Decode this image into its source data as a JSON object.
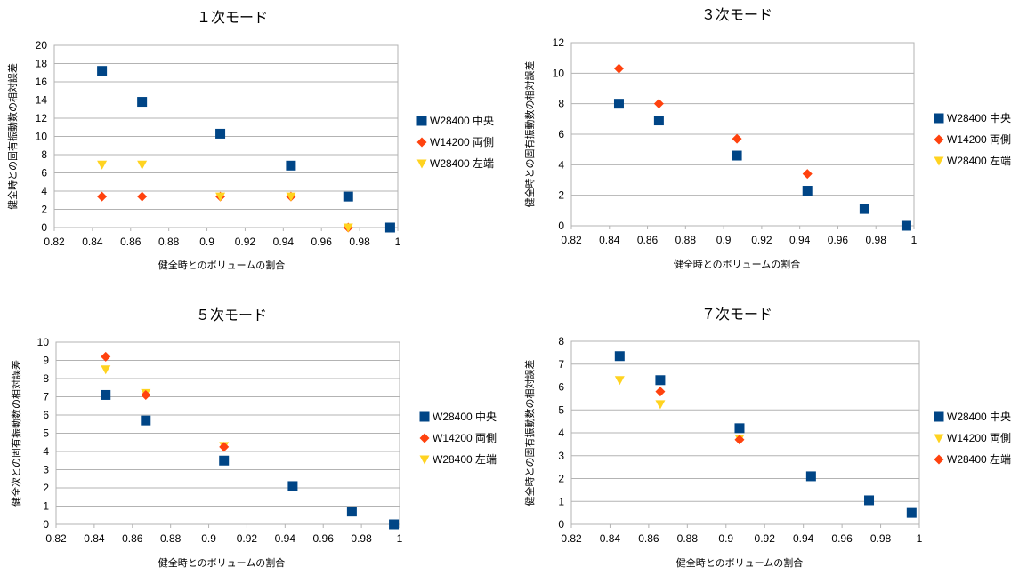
{
  "chart_data": [
    {
      "type": "scatter",
      "title": "１次モード",
      "xlabel": "健全時とのボリュームの割合",
      "ylabel": "健全時との固有振動数の相対誤差",
      "xlim": [
        0.82,
        1
      ],
      "ylim": [
        0,
        20
      ],
      "xticks": [
        0.82,
        0.84,
        0.86,
        0.88,
        0.9,
        0.92,
        0.94,
        0.96,
        0.98,
        1
      ],
      "yticks": [
        0,
        2,
        4,
        6,
        8,
        10,
        12,
        14,
        16,
        18,
        20
      ],
      "xtick_labels": [
        "0.82",
        "0.84",
        "0.86",
        "0.88",
        "0.9",
        "0.92",
        "0.94",
        "0.96",
        "0.98",
        "1"
      ],
      "ytick_labels": [
        "0",
        "2",
        "4",
        "6",
        "8",
        "10",
        "12",
        "14",
        "16",
        "18",
        "20"
      ],
      "grid": true,
      "legend_position": "right",
      "series": [
        {
          "name": "W28400  中央",
          "marker": "square",
          "color": "#004586",
          "points": [
            [
              0.845,
              17.2
            ],
            [
              0.866,
              13.8
            ],
            [
              0.907,
              10.3
            ],
            [
              0.944,
              6.8
            ],
            [
              0.974,
              3.4
            ],
            [
              0.996,
              0
            ]
          ]
        },
        {
          "name": "W14200  両側",
          "marker": "diamond",
          "color": "#ff420e",
          "points": [
            [
              0.845,
              3.4
            ],
            [
              0.866,
              3.4
            ],
            [
              0.907,
              3.4
            ],
            [
              0.944,
              3.4
            ],
            [
              0.974,
              0
            ],
            [
              0.996,
              0
            ]
          ]
        },
        {
          "name": "W28400  左端",
          "marker": "triangle-down",
          "color": "#ffd320",
          "points": [
            [
              0.845,
              6.9
            ],
            [
              0.866,
              6.9
            ],
            [
              0.907,
              3.4
            ],
            [
              0.944,
              3.4
            ],
            [
              0.974,
              0
            ],
            [
              0.996,
              0
            ]
          ]
        }
      ],
      "draw_order": [
        1,
        2,
        0
      ]
    },
    {
      "type": "scatter",
      "title": "３次モード",
      "xlabel": "健全時とのボリュームの割合",
      "ylabel": "健全時との固有振動数の相対誤差",
      "xlim": [
        0.82,
        1
      ],
      "ylim": [
        0,
        12
      ],
      "xticks": [
        0.82,
        0.84,
        0.86,
        0.88,
        0.9,
        0.92,
        0.94,
        0.96,
        0.98,
        1
      ],
      "yticks": [
        0,
        2,
        4,
        6,
        8,
        10,
        12
      ],
      "xtick_labels": [
        "0.82",
        "0.84",
        "0.86",
        "0.88",
        "0.9",
        "0.92",
        "0.94",
        "0.96",
        "0.98",
        "1"
      ],
      "ytick_labels": [
        "0",
        "2",
        "4",
        "6",
        "8",
        "10",
        "12"
      ],
      "grid": true,
      "legend_position": "right",
      "series": [
        {
          "name": "W28400  中央",
          "marker": "square",
          "color": "#004586",
          "points": [
            [
              0.845,
              8.0
            ],
            [
              0.866,
              6.9
            ],
            [
              0.907,
              4.6
            ],
            [
              0.944,
              2.3
            ],
            [
              0.974,
              1.1
            ],
            [
              0.996,
              0
            ]
          ]
        },
        {
          "name": "W14200  両側",
          "marker": "diamond",
          "color": "#ff420e",
          "points": [
            [
              0.845,
              10.3
            ],
            [
              0.866,
              8.0
            ],
            [
              0.907,
              5.7
            ],
            [
              0.944,
              3.4
            ]
          ]
        },
        {
          "name": "W28400  左端",
          "marker": "triangle-down",
          "color": "#ffd320",
          "points": []
        }
      ],
      "draw_order": [
        2,
        1,
        0
      ]
    },
    {
      "type": "scatter",
      "title": "５次モード",
      "xlabel": "健全時とのボリュームの割合",
      "ylabel": "健全次との固有振動数の相対誤差",
      "xlim": [
        0.82,
        1
      ],
      "ylim": [
        0,
        10
      ],
      "xticks": [
        0.82,
        0.84,
        0.86,
        0.88,
        0.9,
        0.92,
        0.94,
        0.96,
        0.98,
        1
      ],
      "yticks": [
        0,
        1,
        2,
        3,
        4,
        5,
        6,
        7,
        8,
        9,
        10
      ],
      "xtick_labels": [
        "0.82",
        "0.84",
        "0.86",
        "0.88",
        "0.9",
        "0.92",
        "0.94",
        "0.96",
        "0.98",
        "1"
      ],
      "ytick_labels": [
        "0",
        "1",
        "2",
        "3",
        "4",
        "5",
        "6",
        "7",
        "8",
        "9",
        "10"
      ],
      "grid": true,
      "legend_position": "right",
      "series": [
        {
          "name": "W28400  中央",
          "marker": "square",
          "color": "#004586",
          "points": [
            [
              0.846,
              7.1
            ],
            [
              0.867,
              5.7
            ],
            [
              0.908,
              3.5
            ],
            [
              0.944,
              2.1
            ],
            [
              0.975,
              0.7
            ],
            [
              0.997,
              0
            ]
          ]
        },
        {
          "name": "W14200  両側",
          "marker": "diamond",
          "color": "#ff420e",
          "points": [
            [
              0.846,
              9.2
            ],
            [
              0.867,
              7.1
            ],
            [
              0.908,
              4.25
            ],
            [
              0.997,
              0
            ]
          ]
        },
        {
          "name": "W28400  左端",
          "marker": "triangle-down",
          "color": "#ffd320",
          "points": [
            [
              0.846,
              8.5
            ],
            [
              0.867,
              7.2
            ],
            [
              0.908,
              4.3
            ]
          ]
        }
      ],
      "draw_order": [
        2,
        1,
        0
      ]
    },
    {
      "type": "scatter",
      "title": "７次モード",
      "xlabel": "健全時とのボリュームの割合",
      "ylabel": "健全時との固有振動数の相対誤差",
      "xlim": [
        0.82,
        1
      ],
      "ylim": [
        0,
        8
      ],
      "xticks": [
        0.82,
        0.84,
        0.86,
        0.88,
        0.9,
        0.92,
        0.94,
        0.96,
        0.98,
        1
      ],
      "yticks": [
        0,
        1,
        2,
        3,
        4,
        5,
        6,
        7,
        8
      ],
      "xtick_labels": [
        "0.82",
        "0.84",
        "0.86",
        "0.88",
        "0.9",
        "0.92",
        "0.94",
        "0.96",
        "0.98",
        "1"
      ],
      "ytick_labels": [
        "0",
        "1",
        "2",
        "3",
        "4",
        "5",
        "6",
        "7",
        "8"
      ],
      "grid": true,
      "legend_position": "right",
      "series": [
        {
          "name": "W28400  中央",
          "marker": "square",
          "color": "#004586",
          "points": [
            [
              0.845,
              7.35
            ],
            [
              0.866,
              6.3
            ],
            [
              0.907,
              4.2
            ],
            [
              0.944,
              2.1
            ],
            [
              0.974,
              1.05
            ],
            [
              0.996,
              0.5
            ]
          ]
        },
        {
          "name": "W14200  両側",
          "marker": "triangle-down",
          "color": "#ffd320",
          "points": [
            [
              0.845,
              6.3
            ],
            [
              0.866,
              5.25
            ],
            [
              0.907,
              3.75
            ]
          ]
        },
        {
          "name": "W28400  左端",
          "marker": "diamond",
          "color": "#ff420e",
          "points": [
            [
              0.866,
              5.8
            ],
            [
              0.907,
              3.7
            ]
          ]
        }
      ],
      "draw_order": [
        1,
        2,
        0
      ]
    }
  ]
}
